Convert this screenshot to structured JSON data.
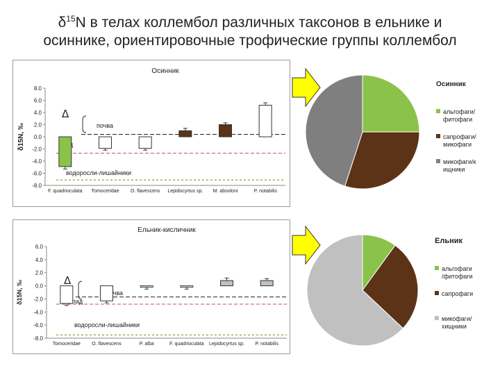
{
  "slide": {
    "title_prefix": "δ",
    "title_sup": "15",
    "title_line1_rest": "N в телах коллембол различных таксонов в ельнике и",
    "title_line2": "осиннике, ориентировочные трофические группы коллембол"
  },
  "colors": {
    "arrow_fill": "#ffff00",
    "algo": "#8bc34a",
    "sapro": "#5c3317",
    "myco": "#7f7f7f",
    "myco_light": "#c0c0c0",
    "soil_line": "#222222",
    "litter_line": "#c0504d",
    "algae_line": "#8a7a00"
  },
  "chart_data": [
    {
      "type": "bar",
      "title": "Осинник",
      "ylabel": "δ15N, ‰",
      "ylim": [
        -8,
        8
      ],
      "yticks": [
        "8.0",
        "6.0",
        "4.0",
        "2.0",
        "0.0",
        "-2.0",
        "-4.0",
        "-6.0",
        "-8.0"
      ],
      "categories": [
        "F. quadrioculata",
        "Tomoceridae",
        "O. flavescens",
        "Lepidocyrtus sp.",
        "M. absoloni",
        "P. notabilis"
      ],
      "values": [
        -4.9,
        -1.9,
        -1.9,
        1.0,
        2.0,
        5.2
      ],
      "errors": [
        0.4,
        0.3,
        0.3,
        0.4,
        0.3,
        0.4
      ],
      "bar_groups": [
        "algo",
        "myco",
        "myco",
        "sapro",
        "sapro",
        "myco"
      ],
      "delta_label": "Δ",
      "reference_lines": [
        {
          "label": "почва",
          "value": 0.4
        },
        {
          "label": "опад",
          "value": -2.7
        },
        {
          "label": "водоросли-лишайники",
          "value": -7.1
        }
      ]
    },
    {
      "type": "bar",
      "title": "Ельник-кисличник",
      "ylabel": "δ15N, ‰",
      "ylim": [
        -8,
        6
      ],
      "yticks": [
        "6.0",
        "4.0",
        "2.0",
        "0.0",
        "-2.0",
        "-4.0",
        "-6.0",
        "-8.0"
      ],
      "categories": [
        "Tomoceridae",
        "O. flavescens",
        "P. alba",
        "F. quadrioculata",
        "Lepidocyrtus sp.",
        "P. notabilis"
      ],
      "values": [
        -2.7,
        -2.3,
        -0.2,
        -0.2,
        0.8,
        0.8
      ],
      "errors": [
        0.3,
        0.3,
        0.3,
        0.3,
        0.4,
        0.3
      ],
      "bar_groups": [
        "myco",
        "myco",
        "myco",
        "myco",
        "myco_light",
        "myco_light"
      ],
      "delta_label": "Δ",
      "reference_lines": [
        {
          "label": "почва",
          "value": -1.7
        },
        {
          "label": "опад",
          "value": -2.8
        },
        {
          "label": "водоросли-лишайники",
          "value": -7.5
        }
      ]
    },
    {
      "type": "pie",
      "title": "Осинник",
      "categories": [
        "альгофаги/ фитофаги",
        "сапрофаги/ микофаги",
        "микофаги/к ищники"
      ],
      "values": [
        25,
        30,
        45
      ],
      "color_keys": [
        "algo",
        "sapro",
        "myco"
      ]
    },
    {
      "type": "pie",
      "title": "Ельник",
      "categories": [
        "альгофаги /фитофаги",
        "сапрофаги",
        "микофаги/ хищники"
      ],
      "values": [
        10,
        27,
        63
      ],
      "color_keys": [
        "algo",
        "sapro",
        "myco_light"
      ]
    }
  ]
}
